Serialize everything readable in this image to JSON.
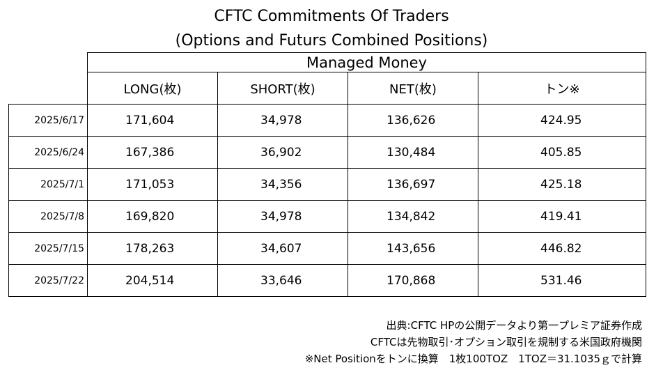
{
  "title": {
    "line1": "CFTC Commitments Of Traders",
    "line2": "(Options and Futurs Combined Positions)"
  },
  "table": {
    "group_header": "Managed Money",
    "columns": [
      "LONG(枚)",
      "SHORT(枚)",
      "NET(枚)",
      "トン※"
    ],
    "rows": [
      {
        "date": "2025/6/17",
        "long": "171,604",
        "short": "34,978",
        "net": "136,626",
        "ton": "424.95"
      },
      {
        "date": "2025/6/24",
        "long": "167,386",
        "short": "36,902",
        "net": "130,484",
        "ton": "405.85"
      },
      {
        "date": "2025/7/1",
        "long": "171,053",
        "short": "34,356",
        "net": "136,697",
        "ton": "425.18"
      },
      {
        "date": "2025/7/8",
        "long": "169,820",
        "short": "34,978",
        "net": "134,842",
        "ton": "419.41"
      },
      {
        "date": "2025/7/15",
        "long": "178,263",
        "short": "34,607",
        "net": "143,656",
        "ton": "446.82"
      },
      {
        "date": "2025/7/22",
        "long": "204,514",
        "short": "33,646",
        "net": "170,868",
        "ton": "531.46"
      }
    ]
  },
  "notes": {
    "source": "出典:CFTC HPの公開データより第一プレミア証券作成",
    "cftc": "CFTCは先物取引･オプション取引を規制する米国政府機関",
    "conversion": "※Net Positionをトンに換算　1枚100TOZ　1TOZ＝31.1035ｇで計算"
  }
}
